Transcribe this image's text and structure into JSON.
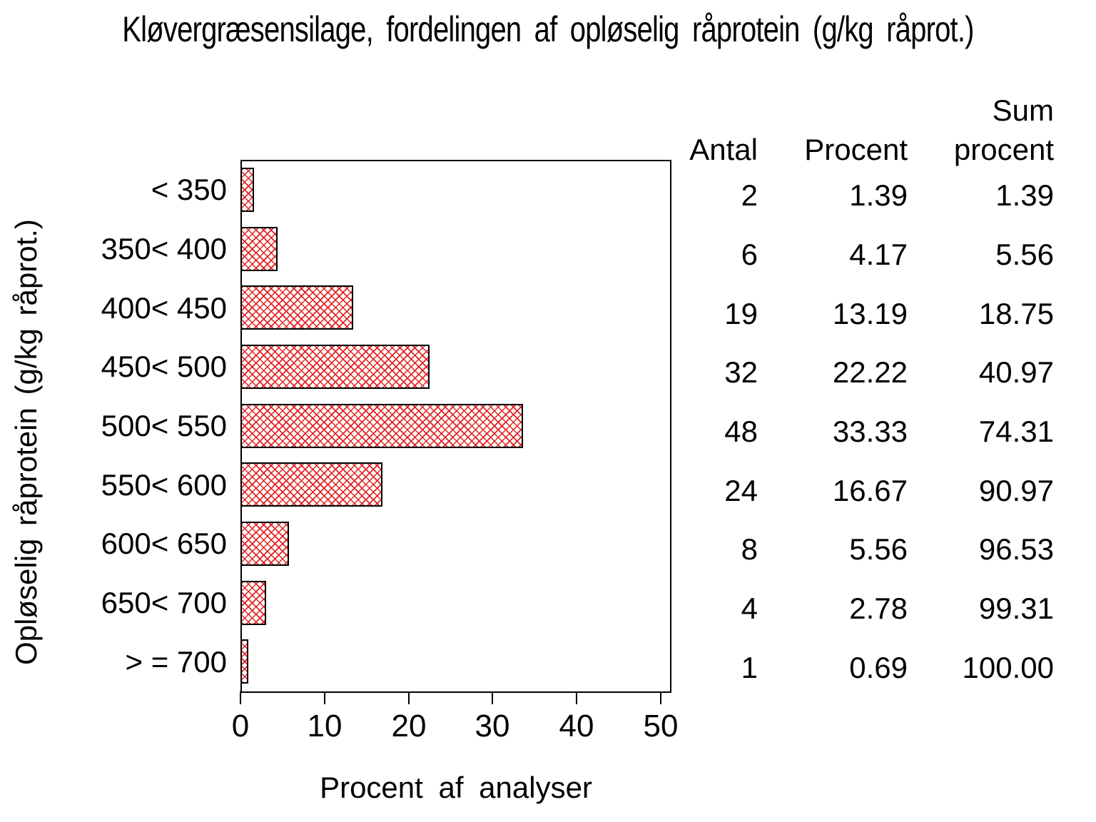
{
  "title": "Kløvergræsensilage, fordelingen af opløselig råprotein (g/kg råprot.)",
  "chart_data": {
    "type": "bar",
    "orientation": "horizontal",
    "title": "Kløvergræsensilage, fordelingen af opløselig råprotein (g/kg råprot.)",
    "xlabel": "Procent af analyser",
    "ylabel": "Opløselig råprotein (g/kg råprot.)",
    "categories": [
      "< 350",
      "350< 400",
      "400< 450",
      "450< 500",
      "500< 550",
      "550< 600",
      "600< 650",
      "650< 700",
      "> = 700"
    ],
    "values": [
      1.39,
      4.17,
      13.19,
      22.22,
      33.33,
      16.67,
      5.56,
      2.78,
      0.69
    ],
    "counts": [
      2,
      6,
      19,
      32,
      48,
      24,
      8,
      4,
      1
    ],
    "cum_percent": [
      1.39,
      5.56,
      18.75,
      40.97,
      74.31,
      90.97,
      96.53,
      99.31,
      100.0
    ],
    "xlim": [
      0,
      50
    ],
    "xticks": [
      "0",
      "10",
      "20",
      "30",
      "40",
      "50"
    ],
    "grid": false,
    "legend": false,
    "bar_fill": "diagonal-crosshatch",
    "hatch_color": "#e22020",
    "bar_border_color": "#000000",
    "frame_color": "#000000",
    "background": "#ffffff"
  },
  "table": {
    "col1_header": "Antal",
    "col2_header": "Procent",
    "col3_header_line1": "Sum",
    "col3_header_line2": "procent",
    "rows": [
      {
        "antal": "2",
        "procent": "1.39",
        "sum_procent": "1.39"
      },
      {
        "antal": "6",
        "procent": "4.17",
        "sum_procent": "5.56"
      },
      {
        "antal": "19",
        "procent": "13.19",
        "sum_procent": "18.75"
      },
      {
        "antal": "32",
        "procent": "22.22",
        "sum_procent": "40.97"
      },
      {
        "antal": "48",
        "procent": "33.33",
        "sum_procent": "74.31"
      },
      {
        "antal": "24",
        "procent": "16.67",
        "sum_procent": "90.97"
      },
      {
        "antal": "8",
        "procent": "5.56",
        "sum_procent": "96.53"
      },
      {
        "antal": "4",
        "procent": "2.78",
        "sum_procent": "99.31"
      },
      {
        "antal": "1",
        "procent": "0.69",
        "sum_procent": "100.00"
      }
    ]
  }
}
